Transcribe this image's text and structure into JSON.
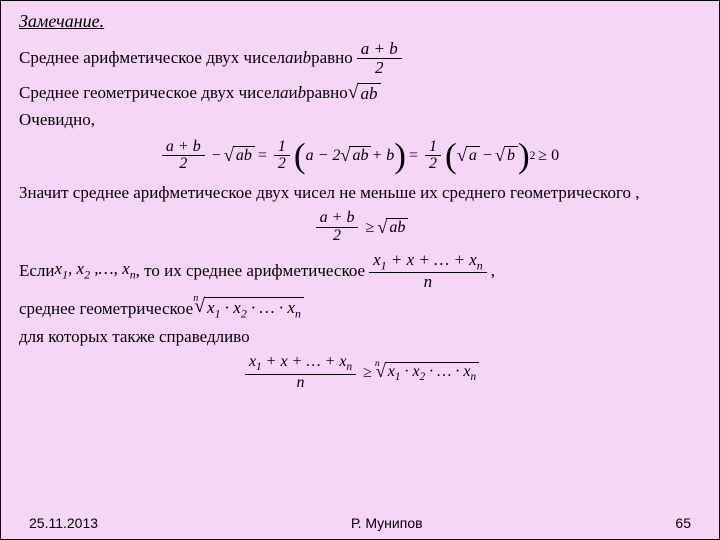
{
  "heading": "Замечание.",
  "line1_a": "Среднее арифметическое двух чисел ",
  "line1_b": " и ",
  "line1_c": " равно ",
  "var_a": "a",
  "var_b": "b",
  "frac_ab_num": "a + b",
  "frac_ab_den": "2",
  "line2_a": "Среднее геометрическое двух чисел ",
  "line2_b": " и ",
  "line2_c": " равно ",
  "sqrt_ab": "ab",
  "line3": "Очевидно,",
  "eq_left_num": "a + b",
  "eq_left_den": "2",
  "eq_minus": "−",
  "eq_sqrt_ab": "ab",
  "eq_eq": "=",
  "eq_half_num": "1",
  "eq_half_den": "2",
  "eq_paren1": "a − 2",
  "eq_paren1b": " + b",
  "eq_paren2a": "a",
  "eq_paren2b": "b",
  "eq_ge0": "≥ 0",
  "line4": "Значит среднее арифметическое двух чисел не меньше их среднего геометрического ,",
  "ineq_num": "a + b",
  "ineq_den": "2",
  "ineq_ge": "≥",
  "line5_a": "Если ",
  "seq_x1": "x",
  "seq_1": "1",
  "seq_2": "2",
  "seq_n": "n",
  "seq_dots": ",…,",
  "line5_b": " , то их среднее арифметическое ",
  "am_num_a": "x",
  "am_num_plus": " + x + … + x",
  "am_den": "n",
  "line5_c": " ,",
  "line6": "среднее геометрическое ",
  "gm_rad": "x",
  "gm_dot": " · x",
  "gm_dots": " · … · x",
  "line7": "для которых также справедливо",
  "footer_date": "25.11.2013",
  "footer_author": "Р. Мунипов",
  "footer_page": "65"
}
